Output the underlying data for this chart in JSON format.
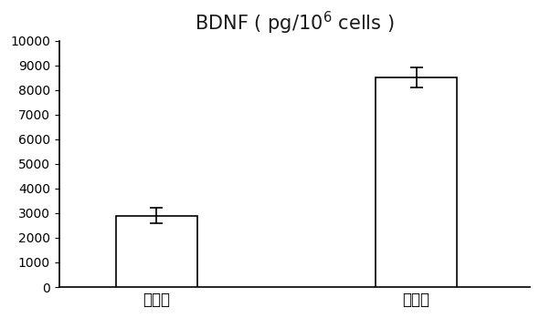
{
  "categories": [
    "未诱导",
    "诱导后"
  ],
  "values": [
    2900,
    8500
  ],
  "errors": [
    300,
    400
  ],
  "bar_color": "#ffffff",
  "bar_edgecolor": "#000000",
  "bar_linewidth": 1.2,
  "bar_width": 0.5,
  "ylim": [
    0,
    10000
  ],
  "yticks": [
    0,
    1000,
    2000,
    3000,
    4000,
    5000,
    6000,
    7000,
    8000,
    9000,
    10000
  ],
  "title_text": "BDNF（ pg/10^6 cells ）",
  "title_fontsize": 15,
  "tick_fontsize": 10,
  "xticklabel_fontsize": 12,
  "background_color": "#ffffff",
  "bar_positions": [
    1,
    2.6
  ],
  "xlim": [
    0.4,
    3.3
  ],
  "error_capsize": 5,
  "error_linewidth": 1.2,
  "error_capthick": 1.2
}
